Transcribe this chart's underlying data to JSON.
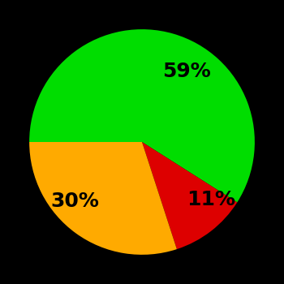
{
  "slices": [
    59,
    11,
    30
  ],
  "colors": [
    "#00dd00",
    "#dd0000",
    "#ffaa00"
  ],
  "labels": [
    "59%",
    "11%",
    "30%"
  ],
  "background_color": "#000000",
  "text_color": "#000000",
  "startangle": 180,
  "labeldistance": 0.65,
  "fontsize": 18,
  "figsize": [
    3.5,
    3.5
  ],
  "dpi": 100
}
